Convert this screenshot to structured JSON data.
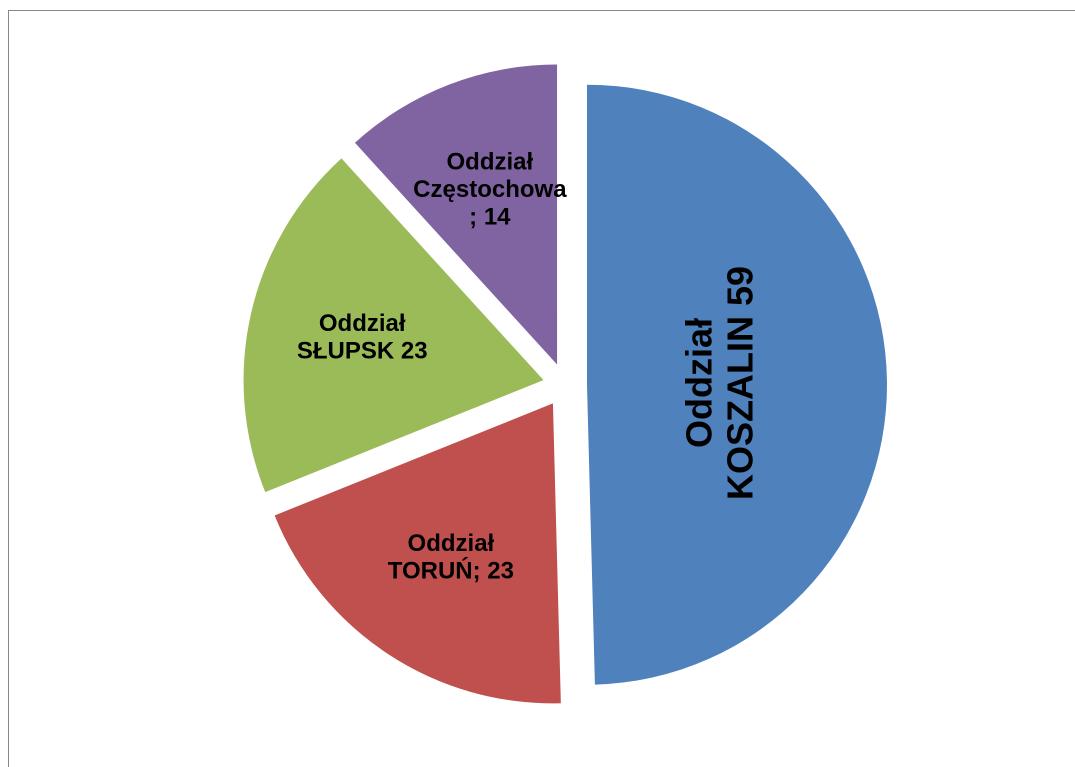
{
  "chart_data": {
    "type": "pie",
    "categories": [
      "Oddział KOSZALIN 59",
      "Oddział TORUŃ; 23",
      "Oddział SŁUPSK 23",
      "Oddział Częstochowa ; 14"
    ],
    "values": [
      59,
      23,
      23,
      14
    ],
    "colors": [
      "#4f81bd",
      "#c0504d",
      "#9bbb59",
      "#8064a2"
    ]
  }
}
